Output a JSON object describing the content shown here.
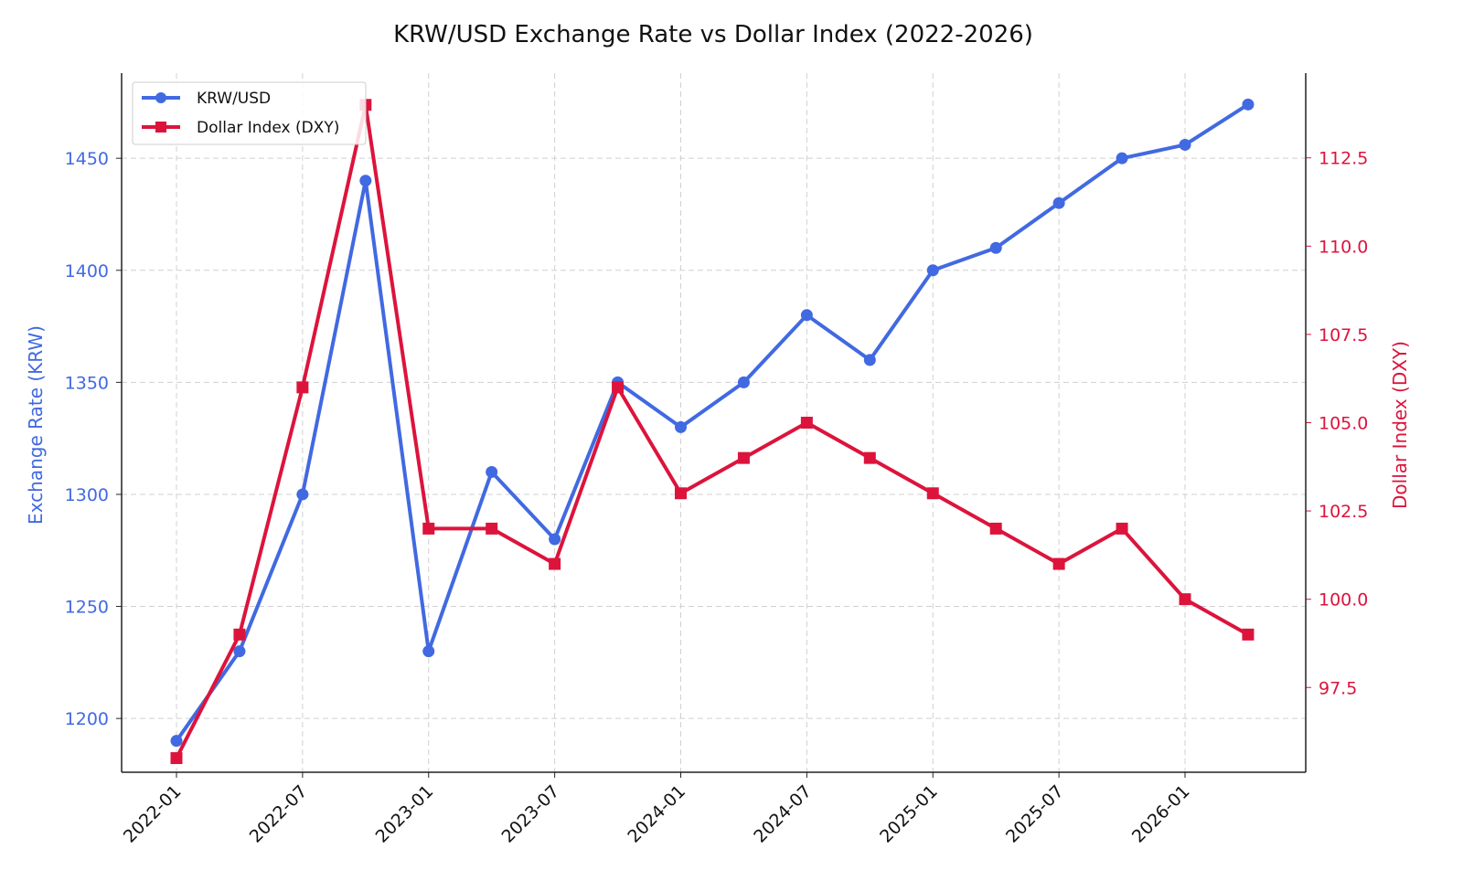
{
  "chart_data": {
    "type": "line",
    "title": "KRW/USD Exchange Rate vs Dollar Index (2022-2026)",
    "xlabel": "",
    "x": [
      "2022-01",
      "2022-04",
      "2022-07",
      "2022-10",
      "2023-01",
      "2023-04",
      "2023-07",
      "2023-10",
      "2024-01",
      "2024-04",
      "2024-07",
      "2024-10",
      "2025-01",
      "2025-04",
      "2025-07",
      "2025-10",
      "2026-01",
      "2026-04"
    ],
    "x_ticks": [
      "2022-01",
      "2022-07",
      "2023-01",
      "2023-07",
      "2024-01",
      "2024-07",
      "2025-01",
      "2025-07",
      "2026-01"
    ],
    "series": [
      {
        "name": "KRW/USD",
        "axis": "left",
        "color": "#4169E1",
        "marker": "circle",
        "values": [
          1190,
          1230,
          1300,
          1440,
          1230,
          1310,
          1280,
          1350,
          1330,
          1350,
          1380,
          1360,
          1400,
          1410,
          1430,
          1450,
          1456,
          1474
        ]
      },
      {
        "name": "Dollar Index (DXY)",
        "axis": "right",
        "color": "#DC143C",
        "marker": "square",
        "values": [
          95.5,
          99.0,
          106.0,
          114.0,
          102.0,
          102.0,
          101.0,
          106.0,
          103.0,
          104.0,
          105.0,
          104.0,
          103.0,
          102.0,
          101.0,
          102.0,
          100.0,
          99.0
        ]
      }
    ],
    "y_left": {
      "label": "Exchange Rate (KRW)",
      "lim": [
        1176,
        1488
      ],
      "ticks": [
        "1200",
        "1250",
        "1300",
        "1350",
        "1400",
        "1450"
      ],
      "color": "#4169E1"
    },
    "y_right": {
      "label": "Dollar Index (DXY)",
      "lim": [
        95.1,
        114.9
      ],
      "ticks": [
        "97.5",
        "100.0",
        "102.5",
        "105.0",
        "107.5",
        "110.0",
        "112.5"
      ],
      "color": "#DC143C"
    },
    "grid": true,
    "legend": "top-left"
  }
}
